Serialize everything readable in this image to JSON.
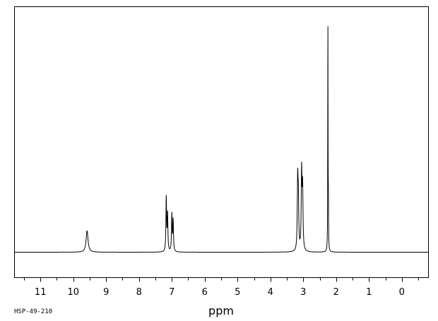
{
  "sample_id": "HSP-49-210",
  "chart_data": {
    "type": "line",
    "title": "",
    "xlabel": "ppm",
    "ylabel": "",
    "xlim": [
      11.8,
      -0.8
    ],
    "ylim": [
      0,
      100
    ],
    "x_reversed": true,
    "x_ticks": [
      11,
      10,
      9,
      8,
      7,
      6,
      5,
      4,
      3,
      2,
      1,
      0
    ],
    "x_minor_step": 0.5,
    "grid": false,
    "legend": "none",
    "baseline": 0,
    "line_color": "#000000",
    "peaks": [
      {
        "ppm": 9.58,
        "height": 9.5,
        "width": 0.035
      },
      {
        "ppm": 7.17,
        "height": 24.0,
        "width": 0.012
      },
      {
        "ppm": 7.13,
        "height": 16.5,
        "width": 0.012
      },
      {
        "ppm": 7.0,
        "height": 16.5,
        "width": 0.012
      },
      {
        "ppm": 6.96,
        "height": 14.0,
        "width": 0.012
      },
      {
        "ppm": 3.17,
        "height": 30.0,
        "width": 0.014
      },
      {
        "ppm": 3.15,
        "height": 20.0,
        "width": 0.014
      },
      {
        "ppm": 3.05,
        "height": 34.5,
        "width": 0.014
      },
      {
        "ppm": 3.02,
        "height": 27.0,
        "width": 0.014
      },
      {
        "ppm": 2.25,
        "height": 100.0,
        "width": 0.005
      },
      {
        "ppm": 2.235,
        "height": 20.0,
        "width": 0.006
      }
    ]
  }
}
